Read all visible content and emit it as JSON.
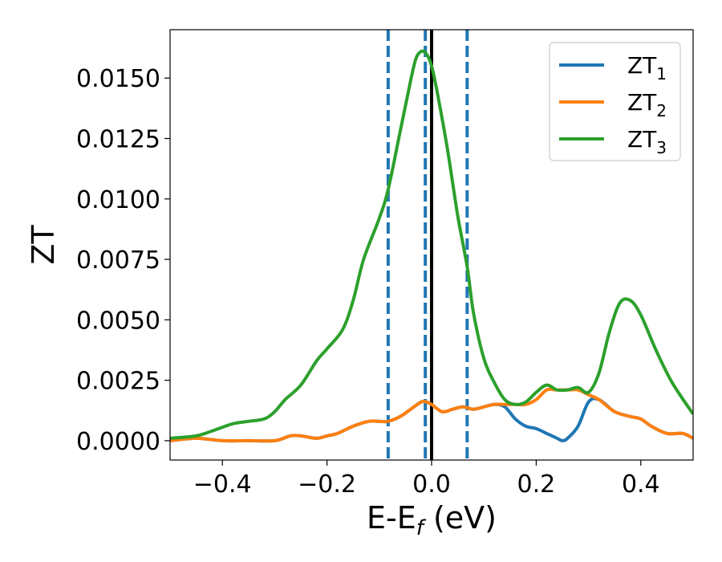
{
  "chart_data": {
    "type": "line",
    "title": "",
    "xlabel": {
      "main": "E-E",
      "sub": "f",
      "tail": " (eV)"
    },
    "ylabel": "ZT",
    "xlim": [
      -0.5,
      0.5
    ],
    "ylim": [
      -0.0008,
      0.017
    ],
    "xticks": [
      -0.4,
      -0.2,
      0.0,
      0.2,
      0.4
    ],
    "xtick_labels": [
      "−0.4",
      "−0.2",
      "0.0",
      "0.2",
      "0.4"
    ],
    "yticks": [
      0.0,
      0.0025,
      0.005,
      0.0075,
      0.01,
      0.0125,
      0.015
    ],
    "ytick_labels": [
      "0.0000",
      "0.0025",
      "0.0050",
      "0.0075",
      "0.0100",
      "0.0125",
      "0.0150"
    ],
    "grid": false,
    "legend": "top-right",
    "vlines_dashed": [
      -0.083,
      -0.012,
      0.068
    ],
    "vline_solid": 0.0,
    "series": [
      {
        "name": {
          "main": "ZT",
          "sub": "1"
        },
        "color": "#1f77b4",
        "x": [
          -0.5,
          -0.45,
          -0.4,
          -0.35,
          -0.3,
          -0.27,
          -0.25,
          -0.22,
          -0.2,
          -0.18,
          -0.15,
          -0.12,
          -0.1,
          -0.083,
          -0.06,
          -0.04,
          -0.02,
          -0.01,
          0.0,
          0.02,
          0.04,
          0.06,
          0.08,
          0.1,
          0.12,
          0.14,
          0.16,
          0.18,
          0.2,
          0.22,
          0.24,
          0.25,
          0.26,
          0.28,
          0.3,
          0.32,
          0.35,
          0.38,
          0.4,
          0.42,
          0.45,
          0.48,
          0.5
        ],
        "y": [
          0.0,
          0.0001,
          0.0,
          0.0,
          0.0,
          0.0002,
          0.0002,
          0.0001,
          0.0002,
          0.0003,
          0.0006,
          0.0008,
          0.0008,
          0.0008,
          0.001,
          0.0013,
          0.0016,
          0.0016,
          0.0015,
          0.0012,
          0.0013,
          0.0014,
          0.0013,
          0.0014,
          0.0015,
          0.0014,
          0.0009,
          0.0006,
          0.0005,
          0.0003,
          0.0001,
          0.0,
          0.0001,
          0.0006,
          0.0016,
          0.0017,
          0.0012,
          0.001,
          0.0009,
          0.0006,
          0.0003,
          0.0003,
          0.0001
        ]
      },
      {
        "name": {
          "main": "ZT",
          "sub": "2"
        },
        "color": "#ff7f0e",
        "x": [
          -0.5,
          -0.45,
          -0.4,
          -0.35,
          -0.3,
          -0.27,
          -0.25,
          -0.22,
          -0.2,
          -0.18,
          -0.15,
          -0.12,
          -0.1,
          -0.083,
          -0.06,
          -0.04,
          -0.02,
          -0.01,
          0.0,
          0.02,
          0.04,
          0.06,
          0.08,
          0.1,
          0.12,
          0.14,
          0.16,
          0.18,
          0.2,
          0.22,
          0.24,
          0.26,
          0.28,
          0.3,
          0.32,
          0.35,
          0.38,
          0.4,
          0.42,
          0.45,
          0.48,
          0.5
        ],
        "y": [
          0.0,
          0.0001,
          0.0,
          0.0,
          0.0,
          0.0002,
          0.0002,
          0.0001,
          0.0002,
          0.0003,
          0.0006,
          0.0008,
          0.0008,
          0.0008,
          0.001,
          0.0013,
          0.0016,
          0.0016,
          0.0015,
          0.0012,
          0.0013,
          0.0014,
          0.0013,
          0.0014,
          0.0015,
          0.0015,
          0.0015,
          0.0015,
          0.0017,
          0.0021,
          0.0021,
          0.0021,
          0.0021,
          0.0019,
          0.0017,
          0.0012,
          0.001,
          0.0009,
          0.0006,
          0.0003,
          0.0003,
          0.0001
        ]
      },
      {
        "name": {
          "main": "ZT",
          "sub": "3"
        },
        "color": "#2ca02c",
        "x": [
          -0.5,
          -0.45,
          -0.42,
          -0.38,
          -0.35,
          -0.32,
          -0.3,
          -0.28,
          -0.25,
          -0.22,
          -0.2,
          -0.17,
          -0.15,
          -0.13,
          -0.1,
          -0.083,
          -0.06,
          -0.04,
          -0.03,
          -0.02,
          -0.01,
          0.0,
          0.01,
          0.03,
          0.05,
          0.068,
          0.08,
          0.1,
          0.12,
          0.14,
          0.16,
          0.18,
          0.2,
          0.22,
          0.24,
          0.26,
          0.28,
          0.3,
          0.32,
          0.34,
          0.36,
          0.38,
          0.4,
          0.43,
          0.46,
          0.5
        ],
        "y": [
          0.0001,
          0.0002,
          0.0004,
          0.0007,
          0.0008,
          0.0009,
          0.0012,
          0.0017,
          0.0023,
          0.0033,
          0.0038,
          0.0046,
          0.0058,
          0.0075,
          0.0092,
          0.0104,
          0.0128,
          0.0149,
          0.0158,
          0.0161,
          0.016,
          0.0155,
          0.0145,
          0.0121,
          0.0093,
          0.0072,
          0.0053,
          0.0034,
          0.0024,
          0.0017,
          0.0015,
          0.0016,
          0.002,
          0.0023,
          0.0021,
          0.0021,
          0.0022,
          0.002,
          0.0028,
          0.0045,
          0.0057,
          0.0058,
          0.0052,
          0.0037,
          0.0024,
          0.0011
        ]
      }
    ]
  }
}
